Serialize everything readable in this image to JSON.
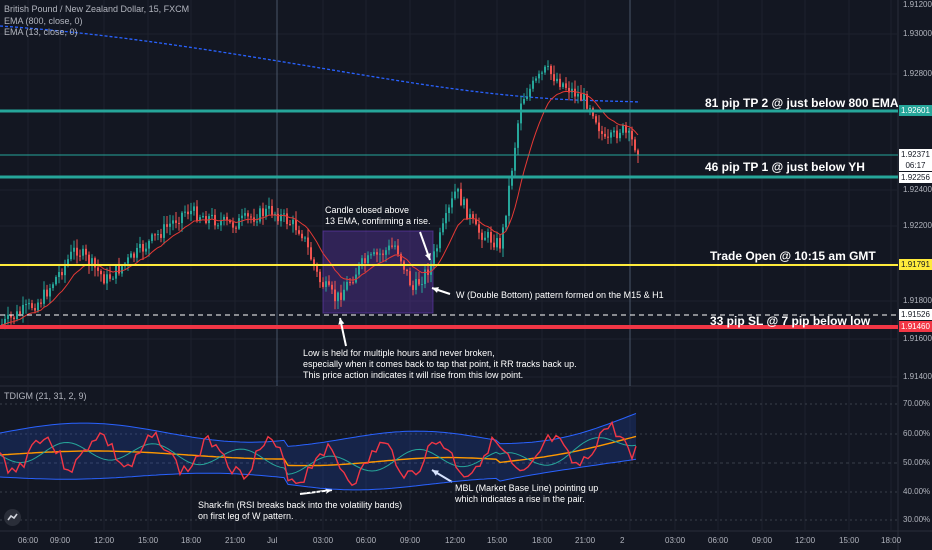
{
  "symbol_title": "British Pound / New Zealand Dollar, 15, FXCM",
  "indicators": [
    "EMA (800, close, 0)",
    "EMA (13, close, 0)"
  ],
  "oscillator_title": "TDIGM (21, 31, 2, 9)",
  "price_axis": [
    "1.93000",
    "1.92800",
    "1.92400",
    "1.92200",
    "1.92000",
    "1.91800",
    "1.91600",
    "1.91400",
    "1.91200"
  ],
  "osc_axis": [
    "70.00%",
    "60.00%",
    "50.00%",
    "40.00%",
    "30.00%"
  ],
  "time_axis": [
    "06:00",
    "09:00",
    "12:00",
    "15:00",
    "18:00",
    "21:00",
    "Jul",
    "03:00",
    "06:00",
    "09:00",
    "12:00",
    "15:00",
    "18:00",
    "21:00",
    "2",
    "03:00",
    "06:00",
    "09:00",
    "12:00",
    "15:00",
    "18:00"
  ],
  "price_tags": [
    {
      "value": "1.92601",
      "bg": "#26a69a",
      "fg": "#ffffff"
    },
    {
      "value": "1.92371",
      "bg": "#ffffff",
      "fg": "#131722"
    },
    {
      "value": "06:17",
      "bg": "#ffffff",
      "fg": "#131722"
    },
    {
      "value": "1.92256",
      "bg": "#ffffff",
      "fg": "#131722"
    },
    {
      "value": "1.91791",
      "bg": "#ffeb3b",
      "fg": "#131722"
    },
    {
      "value": "1.91526",
      "bg": "#ffffff",
      "fg": "#131722"
    },
    {
      "value": "1.91460",
      "bg": "#f23645",
      "fg": "#ffffff"
    }
  ],
  "levels": {
    "tp2": "81 pip TP 2 @ just below 800 EMA",
    "tp1": "46 pip TP 1 @ just below YH",
    "open": "Trade Open @ 10:15 am GMT",
    "sl": "33 pip SL @ 7 pip below low"
  },
  "annotations": {
    "candle_close": [
      "Candle closed above",
      "13 EMA, confirming a rise."
    ],
    "w_pattern": "W (Double Bottom) pattern formed on the M15 & H1",
    "low_held": [
      "Low is held for multiple hours and never broken,",
      "especially when it comes back to tap that point, it RR tracks back up.",
      "This price action indicates it will rise from this low point."
    ],
    "shark_fin": [
      "Shark-fin (RSI breaks back into the volatility bands)",
      "on first leg of W pattern."
    ],
    "mbl": [
      "MBL (Market Base Line) pointing up",
      "which indicates a rise in the pair."
    ]
  },
  "colors": {
    "background": "#131722",
    "bull": "#26a69a",
    "bear": "#ef5350",
    "tp_line": "#26a69a",
    "open_line": "#ffeb3b",
    "sl_line": "#f23645",
    "ema800": "#2962ff",
    "ema13": "#e53935",
    "highlight_box": "#673ab7"
  }
}
